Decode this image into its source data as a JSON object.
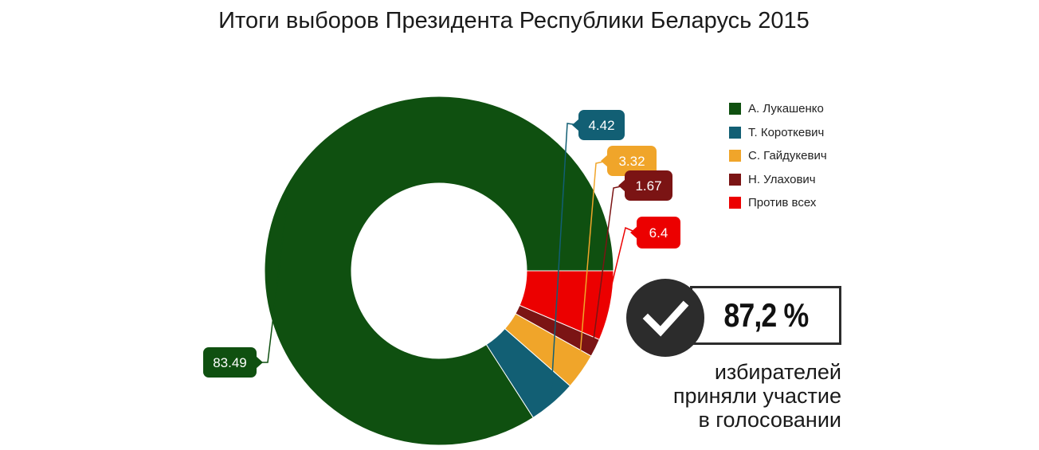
{
  "chart_data": {
    "type": "pie",
    "title": "Итоги выборов Президента Республики Беларусь 2015",
    "donut": true,
    "legend_position": "top-right",
    "slices": [
      {
        "label": "А. Лукашенко",
        "value": 83.49,
        "display": "83.49",
        "color": "#0f5010"
      },
      {
        "label": "Т. Короткевич",
        "value": 4.42,
        "display": "4.42",
        "color": "#125f74"
      },
      {
        "label": "С. Гайдукевич",
        "value": 3.32,
        "display": "3.32",
        "color": "#f0a52a"
      },
      {
        "label": "Н. Улахович",
        "value": 1.67,
        "display": "1.67",
        "color": "#7b1414"
      },
      {
        "label": "Против всех",
        "value": 6.4,
        "display": "6.4",
        "color": "#ec0000"
      }
    ]
  },
  "turnout": {
    "value": "87,2 %",
    "caption": [
      "избирателей",
      "приняли участие",
      "в голосовании"
    ]
  }
}
